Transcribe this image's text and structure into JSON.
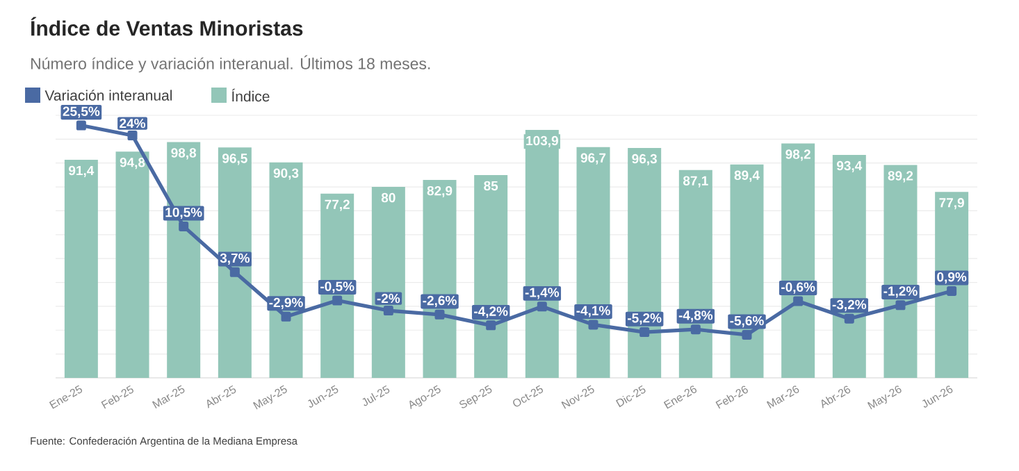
{
  "chart_data": {
    "type": "bar",
    "title": "Índice de Ventas Minoristas",
    "subtitle": "Número índice y variación interanual. Últimos 18 meses.",
    "annotations": [
      "Fuente: Confederación Argentina de la Mediana Empresa"
    ],
    "categories": [
      "Ene-25",
      "Feb-25",
      "Mar-25",
      "Abr-25",
      "May-25",
      "Jun-25",
      "Jul-25",
      "Ago-25",
      "Sep-25",
      "Oct-25",
      "Nov-25",
      "Dic-25",
      "Ene-26",
      "Feb-26",
      "Mar-26",
      "Abr-26",
      "May-26",
      "Jun-26"
    ],
    "series": [
      {
        "name": "Variación interanual",
        "type": "line",
        "axis": "y2",
        "marker": "square",
        "color": "#4a6aa3",
        "values": [
          25.5,
          24,
          10.5,
          3.7,
          -2.9,
          -0.5,
          -2,
          -2.6,
          -4.2,
          -1.4,
          -4.1,
          -5.2,
          -4.8,
          -5.6,
          -0.6,
          -3.2,
          -1.2,
          0.9
        ],
        "value_labels": [
          "25,5%",
          "24%",
          "10,5%",
          "3,7%",
          "-2,9%",
          "-0,5%",
          "-2%",
          "-2,6%",
          "-4,2%",
          "-1,4%",
          "-4,1%",
          "-5,2%",
          "-4,8%",
          "-5,6%",
          "-0,6%",
          "-3,2%",
          "-1,2%",
          "0,9%"
        ]
      },
      {
        "name": "Índice",
        "color": "#93c6b8",
        "values": [
          91.4,
          94.8,
          98.8,
          96.5,
          90.3,
          77.2,
          80,
          82.9,
          85,
          103.9,
          96.7,
          96.3,
          87.1,
          89.4,
          98.2,
          93.4,
          89.2,
          77.9
        ],
        "value_labels": [
          "91,4",
          "94,8",
          "98,8",
          "96,5",
          "90,3",
          "77,2",
          "80",
          "82,9",
          "85",
          "103,9",
          "96,7",
          "96,3",
          "87,1",
          "89,4",
          "98,2",
          "93,4",
          "89,2",
          "77,9"
        ]
      }
    ],
    "ylim": [
      0,
      110
    ],
    "yticks": [
      {
        "value": 0,
        "label": null
      },
      {
        "value": 10,
        "label": null
      },
      {
        "value": 20,
        "label": null
      },
      {
        "value": 30,
        "label": null
      },
      {
        "value": 40,
        "label": null
      },
      {
        "value": 50,
        "label": null
      },
      {
        "value": 60,
        "label": null
      },
      {
        "value": 70,
        "label": null
      },
      {
        "value": 80,
        "label": null
      },
      {
        "value": 90,
        "label": null
      },
      {
        "value": 100,
        "label": null
      },
      {
        "value": 110,
        "label": null
      }
    ],
    "y2lim": [
      -12,
      27
    ],
    "grid": "y",
    "legend": "top left",
    "tick_labels": "x"
  }
}
